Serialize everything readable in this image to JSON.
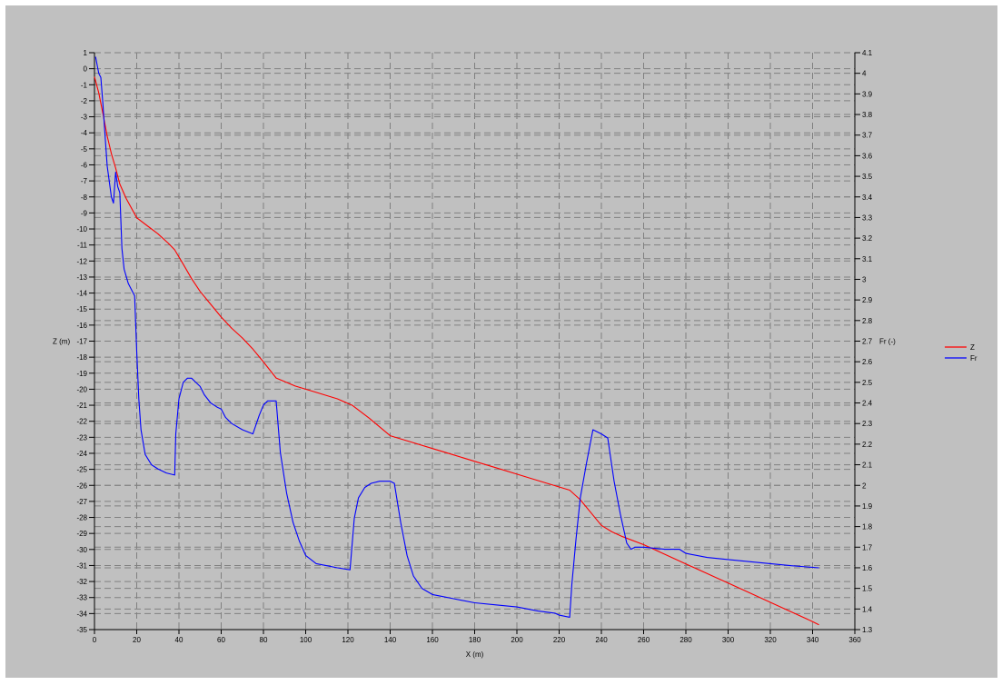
{
  "chart_data": {
    "type": "line",
    "title": "",
    "xlabel": "X (m)",
    "ylabel": "Z (m)",
    "y2label": "Fr (-)",
    "xlim": [
      0,
      360
    ],
    "ylim": [
      -35,
      1
    ],
    "y2lim": [
      1.3,
      4.1
    ],
    "grid": true,
    "legend_position": "right",
    "x_ticks": [
      0,
      20,
      40,
      60,
      80,
      100,
      120,
      140,
      160,
      180,
      200,
      220,
      240,
      260,
      280,
      300,
      320,
      340,
      360
    ],
    "y_ticks": [
      1,
      0,
      -1,
      -2,
      -3,
      -4,
      -5,
      -6,
      -7,
      -8,
      -9,
      -10,
      -11,
      -12,
      -13,
      -14,
      -15,
      -16,
      -17,
      -18,
      -19,
      -20,
      -21,
      -22,
      -23,
      -24,
      -25,
      -26,
      -27,
      -28,
      -29,
      -30,
      -31,
      -32,
      -33,
      -34,
      -35
    ],
    "y2_ticks": [
      4.1,
      4,
      3.9,
      3.8,
      3.7,
      3.6,
      3.5,
      3.4,
      3.3,
      3.2,
      3.1,
      3,
      2.9,
      2.8,
      2.7,
      2.6,
      2.5,
      2.4,
      2.3,
      2.2,
      2.1,
      2,
      1.9,
      1.8,
      1.7,
      1.6,
      1.5,
      1.4,
      1.3
    ],
    "colors": {
      "Z": "#ff0000",
      "Fr": "#0000ff",
      "background": "#c0c0c0",
      "grid": "#808080"
    },
    "series": [
      {
        "name": "Z",
        "axis": "left",
        "color": "#ff0000",
        "x": [
          0,
          2,
          4,
          6,
          8,
          10,
          12,
          15,
          20,
          25,
          30,
          35,
          38,
          42,
          46,
          50,
          55,
          60,
          65,
          70,
          75,
          80,
          86,
          95,
          105,
          115,
          122,
          130,
          140,
          150,
          160,
          170,
          180,
          190,
          200,
          210,
          220,
          225,
          230,
          235,
          240,
          245,
          250,
          260,
          270,
          280,
          290,
          300,
          310,
          320,
          330,
          340,
          343
        ],
        "y": [
          -0.5,
          -1.5,
          -2.8,
          -4.2,
          -5.3,
          -6.2,
          -7.2,
          -8.1,
          -9.3,
          -9.8,
          -10.3,
          -10.9,
          -11.3,
          -12.2,
          -13.1,
          -13.9,
          -14.7,
          -15.5,
          -16.2,
          -16.8,
          -17.5,
          -18.3,
          -19.3,
          -19.8,
          -20.2,
          -20.6,
          -21.0,
          -21.8,
          -22.9,
          -23.3,
          -23.7,
          -24.1,
          -24.5,
          -24.9,
          -25.3,
          -25.7,
          -26.1,
          -26.3,
          -26.9,
          -27.7,
          -28.5,
          -28.9,
          -29.2,
          -29.7,
          -30.3,
          -30.9,
          -31.5,
          -32.1,
          -32.7,
          -33.3,
          -33.9,
          -34.5,
          -34.7
        ]
      },
      {
        "name": "Fr",
        "axis": "right",
        "color": "#0000ff",
        "x": [
          0.5,
          2,
          3,
          4,
          5,
          6,
          8,
          9,
          10,
          11,
          12,
          13,
          14,
          16,
          19,
          20,
          21,
          22,
          24,
          27,
          30,
          34,
          38,
          38.5,
          40,
          42,
          44,
          46,
          48,
          50,
          52,
          55,
          58,
          60,
          62,
          65,
          70,
          75,
          76,
          78,
          80,
          82,
          84,
          86,
          88,
          91,
          94,
          97,
          100,
          105,
          110,
          115,
          121,
          123,
          125,
          128,
          131,
          135,
          140,
          142,
          145,
          148,
          151,
          155,
          160,
          165,
          170,
          180,
          190,
          200,
          210,
          218,
          220,
          225,
          226,
          228,
          230,
          233,
          236,
          240,
          243,
          246,
          249,
          252,
          254,
          256,
          260,
          270,
          277,
          280,
          290,
          300,
          310,
          320,
          330,
          343
        ],
        "y": [
          4.08,
          4.0,
          3.98,
          3.85,
          3.7,
          3.55,
          3.4,
          3.37,
          3.52,
          3.45,
          3.42,
          3.15,
          3.05,
          2.98,
          2.92,
          2.65,
          2.42,
          2.27,
          2.15,
          2.1,
          2.08,
          2.06,
          2.05,
          2.25,
          2.42,
          2.5,
          2.52,
          2.52,
          2.5,
          2.48,
          2.44,
          2.4,
          2.38,
          2.37,
          2.33,
          2.3,
          2.27,
          2.25,
          2.28,
          2.34,
          2.39,
          2.41,
          2.41,
          2.41,
          2.16,
          1.96,
          1.82,
          1.73,
          1.66,
          1.62,
          1.61,
          1.6,
          1.59,
          1.84,
          1.94,
          1.99,
          2.01,
          2.02,
          2.02,
          2.01,
          1.82,
          1.66,
          1.56,
          1.5,
          1.47,
          1.46,
          1.45,
          1.43,
          1.42,
          1.41,
          1.39,
          1.38,
          1.37,
          1.36,
          1.52,
          1.74,
          1.94,
          2.11,
          2.27,
          2.25,
          2.23,
          2.02,
          1.86,
          1.72,
          1.69,
          1.7,
          1.7,
          1.69,
          1.69,
          1.67,
          1.65,
          1.64,
          1.63,
          1.62,
          1.61,
          1.6
        ]
      }
    ]
  }
}
